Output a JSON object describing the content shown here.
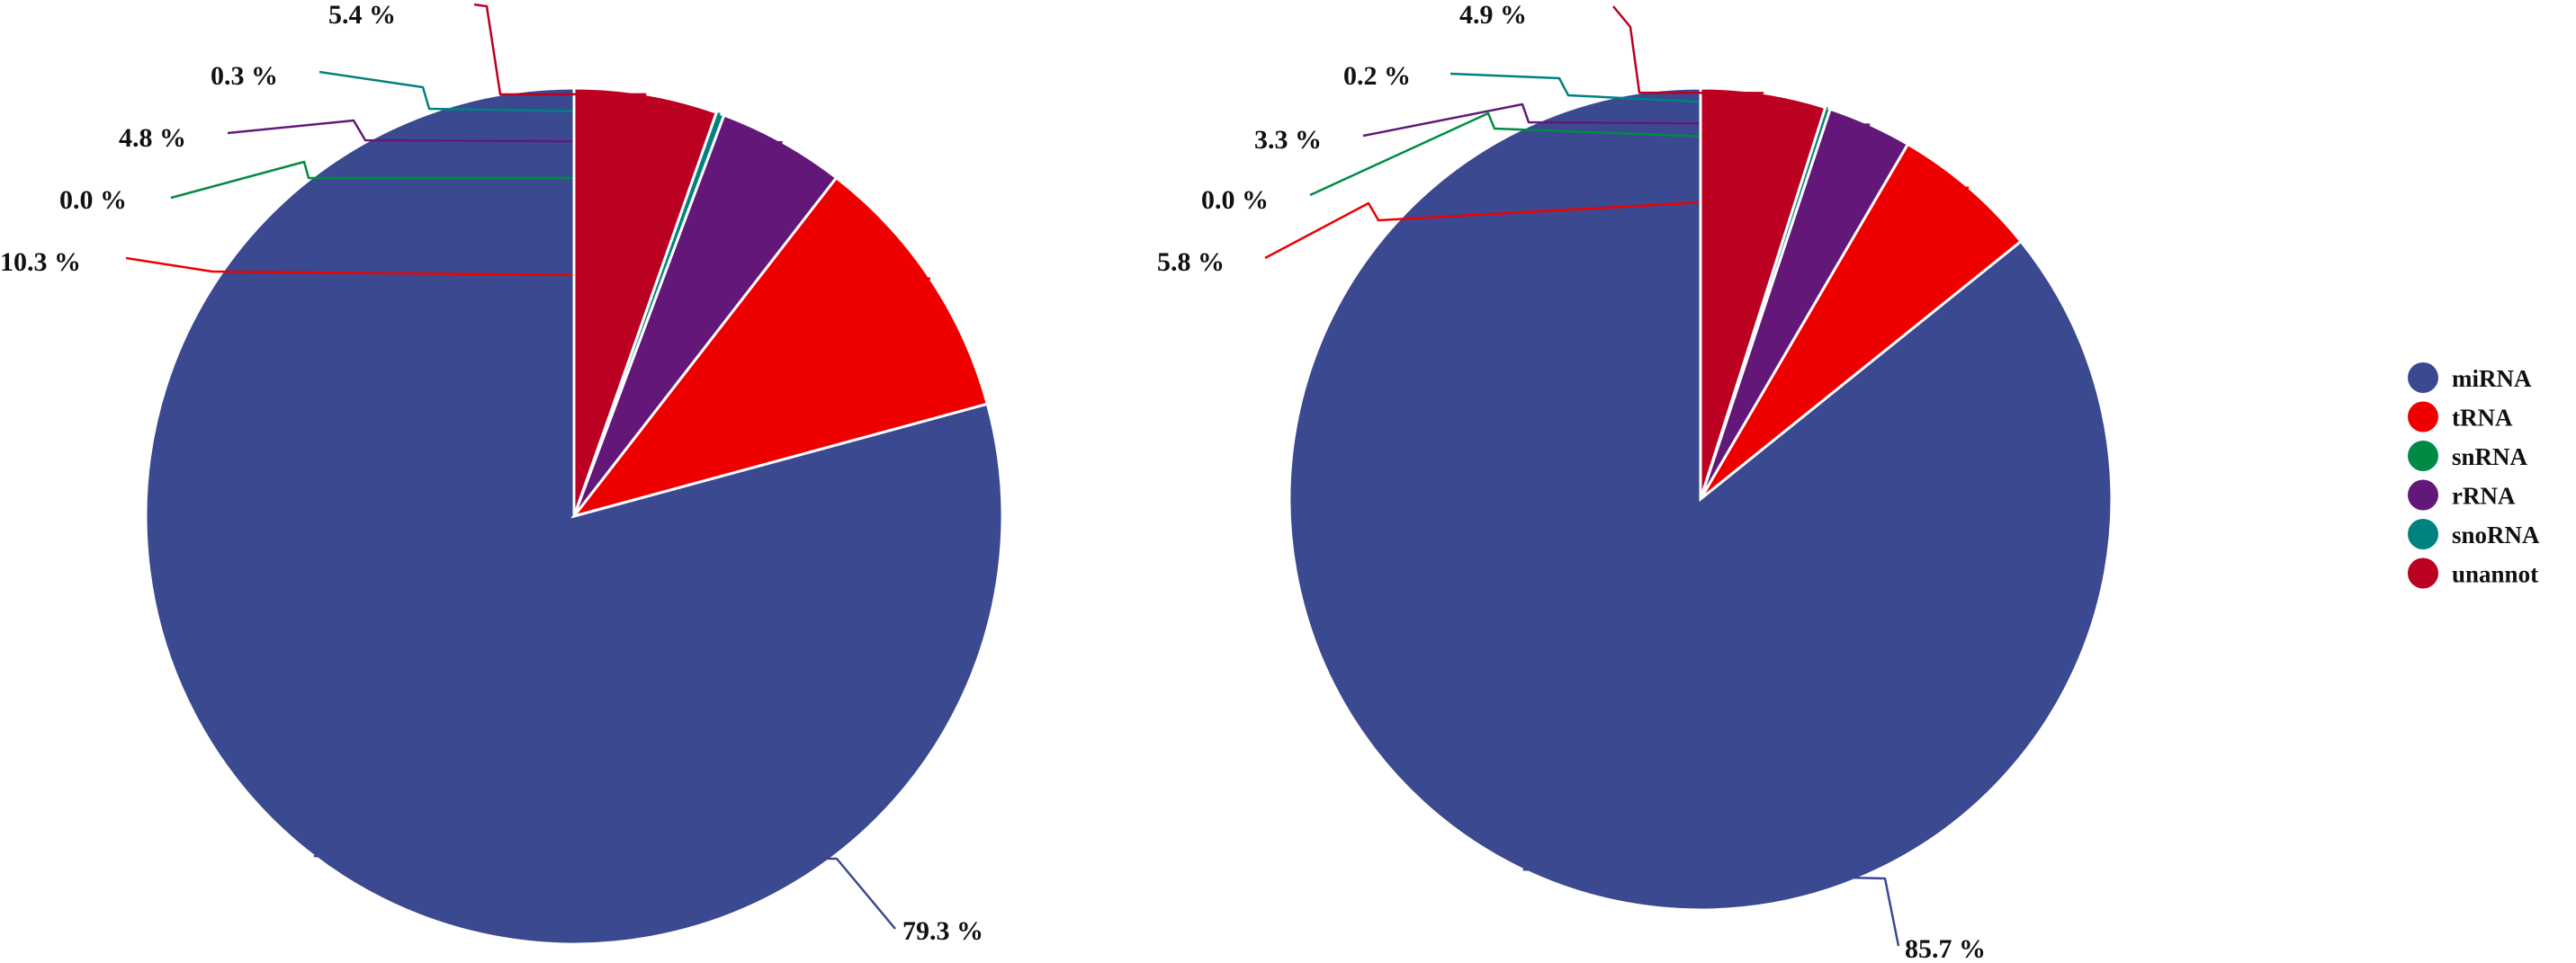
{
  "chart_data": [
    {
      "type": "pie",
      "title": "",
      "categories": [
        "miRNA",
        "tRNA",
        "snRNA",
        "rRNA",
        "snoRNA",
        "unannot"
      ],
      "values": [
        79.3,
        10.3,
        0.0,
        4.8,
        0.3,
        5.4
      ],
      "labels": [
        "79.3 %",
        "10.3 %",
        "0.0 %",
        "4.8 %",
        "0.3 %",
        "5.4 %"
      ]
    },
    {
      "type": "pie",
      "title": "",
      "categories": [
        "miRNA",
        "tRNA",
        "snRNA",
        "rRNA",
        "snoRNA",
        "unannot"
      ],
      "values": [
        85.7,
        5.8,
        0.0,
        3.3,
        0.2,
        4.9
      ],
      "labels": [
        "85.7 %",
        "5.8 %",
        "0.0 %",
        "3.3 %",
        "0.2 %",
        "4.9 %"
      ]
    }
  ],
  "legend": {
    "placement": "right",
    "items": [
      {
        "label": "miRNA",
        "color": "#3a4990"
      },
      {
        "label": "tRNA",
        "color": "#ee0000"
      },
      {
        "label": "snRNA",
        "color": "#008b45"
      },
      {
        "label": "rRNA",
        "color": "#631879"
      },
      {
        "label": "snoRNA",
        "color": "#008280"
      },
      {
        "label": "unannot",
        "color": "#bb0021"
      }
    ]
  }
}
